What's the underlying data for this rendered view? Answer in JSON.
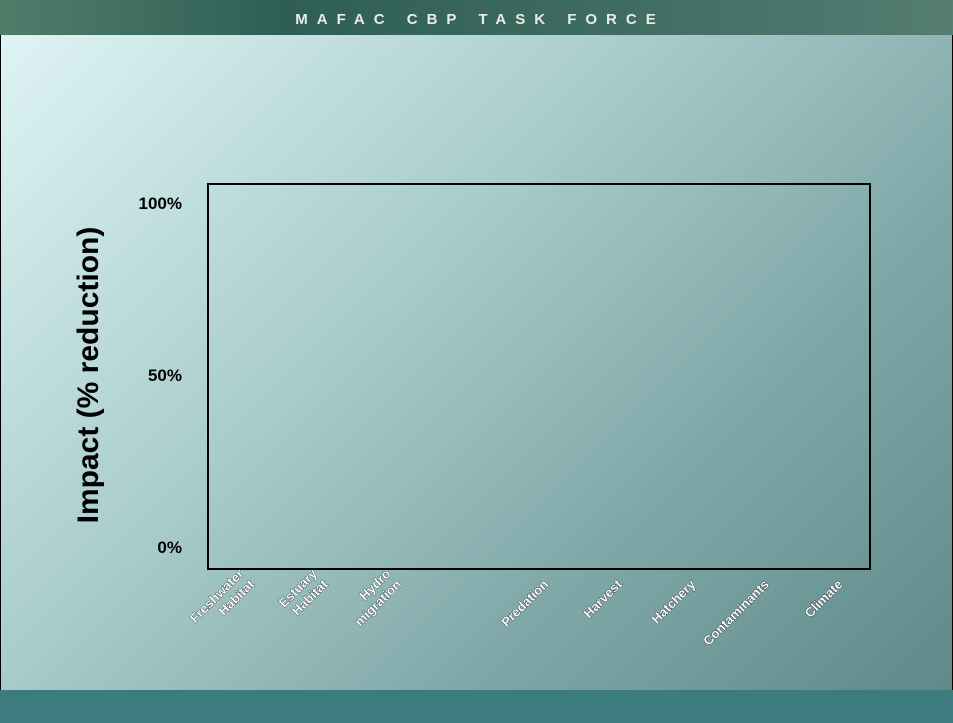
{
  "header": {
    "title": "MAFAC CBP TASK FORCE"
  },
  "chart_data": {
    "type": "bar",
    "y_label": "Impact (% reduction)",
    "categories": [
      [
        "Freshwater",
        "Habitat"
      ],
      [
        "Estuary",
        "Habitat"
      ],
      [
        "Hydro",
        "migration"
      ],
      null,
      [
        "Predation"
      ],
      [
        "Harvest"
      ],
      [
        "Hatchery"
      ],
      [
        "Contaminants"
      ],
      [
        "Climate"
      ]
    ],
    "ylim": [
      -6,
      106
    ],
    "yticks": [
      {
        "value": 0,
        "label": "0%"
      },
      {
        "value": 50,
        "label": "50%"
      },
      {
        "value": 100,
        "label": "100%"
      }
    ],
    "grid": false
  }
}
